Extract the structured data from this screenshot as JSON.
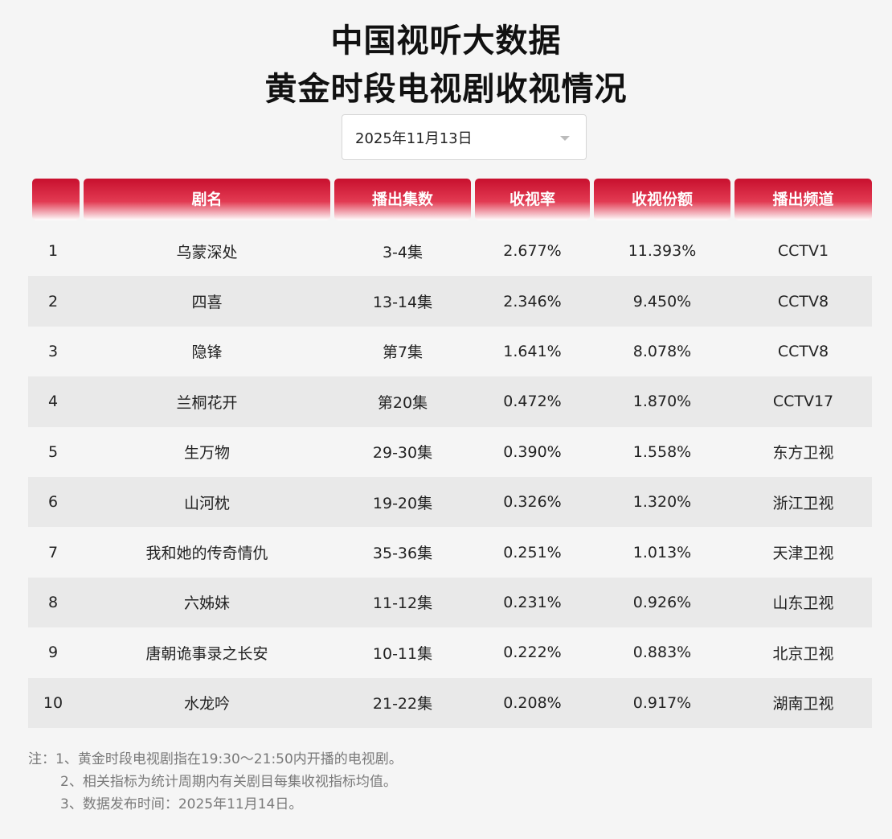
{
  "title": {
    "line1": "中国视听大数据",
    "line2": "黄金时段电视剧收视情况"
  },
  "date_select": {
    "value": "2025年11月13日",
    "icon": "chevron-down-icon"
  },
  "table": {
    "headers": [
      "",
      "剧名",
      "播出集数",
      "收视率",
      "收视份额",
      "播出频道"
    ],
    "rows": [
      {
        "rank": "1",
        "name": "乌蒙深处",
        "episodes": "3-4集",
        "rating": "2.677%",
        "share": "11.393%",
        "channel": "CCTV1"
      },
      {
        "rank": "2",
        "name": "四喜",
        "episodes": "13-14集",
        "rating": "2.346%",
        "share": "9.450%",
        "channel": "CCTV8"
      },
      {
        "rank": "3",
        "name": "隐锋",
        "episodes": "第7集",
        "rating": "1.641%",
        "share": "8.078%",
        "channel": "CCTV8"
      },
      {
        "rank": "4",
        "name": "兰桐花开",
        "episodes": "第20集",
        "rating": "0.472%",
        "share": "1.870%",
        "channel": "CCTV17"
      },
      {
        "rank": "5",
        "name": "生万物",
        "episodes": "29-30集",
        "rating": "0.390%",
        "share": "1.558%",
        "channel": "东方卫视"
      },
      {
        "rank": "6",
        "name": "山河枕",
        "episodes": "19-20集",
        "rating": "0.326%",
        "share": "1.320%",
        "channel": "浙江卫视"
      },
      {
        "rank": "7",
        "name": "我和她的传奇情仇",
        "episodes": "35-36集",
        "rating": "0.251%",
        "share": "1.013%",
        "channel": "天津卫视"
      },
      {
        "rank": "8",
        "name": "六姊妹",
        "episodes": "11-12集",
        "rating": "0.231%",
        "share": "0.926%",
        "channel": "山东卫视"
      },
      {
        "rank": "9",
        "name": "唐朝诡事录之长安",
        "episodes": "10-11集",
        "rating": "0.222%",
        "share": "0.883%",
        "channel": "北京卫视"
      },
      {
        "rank": "10",
        "name": "水龙吟",
        "episodes": "21-22集",
        "rating": "0.208%",
        "share": "0.917%",
        "channel": "湖南卫视"
      }
    ]
  },
  "notes": [
    "注：1、黄金时段电视剧指在19:30～21:50内开播的电视剧。",
    "2、相关指标为统计周期内有关剧目每集收视指标均值。",
    "3、数据发布时间：2025年11月14日。"
  ],
  "colors": {
    "header_red": "#c8102e",
    "row_alt": "#e9e9e9",
    "background": "#f5f5f5"
  }
}
